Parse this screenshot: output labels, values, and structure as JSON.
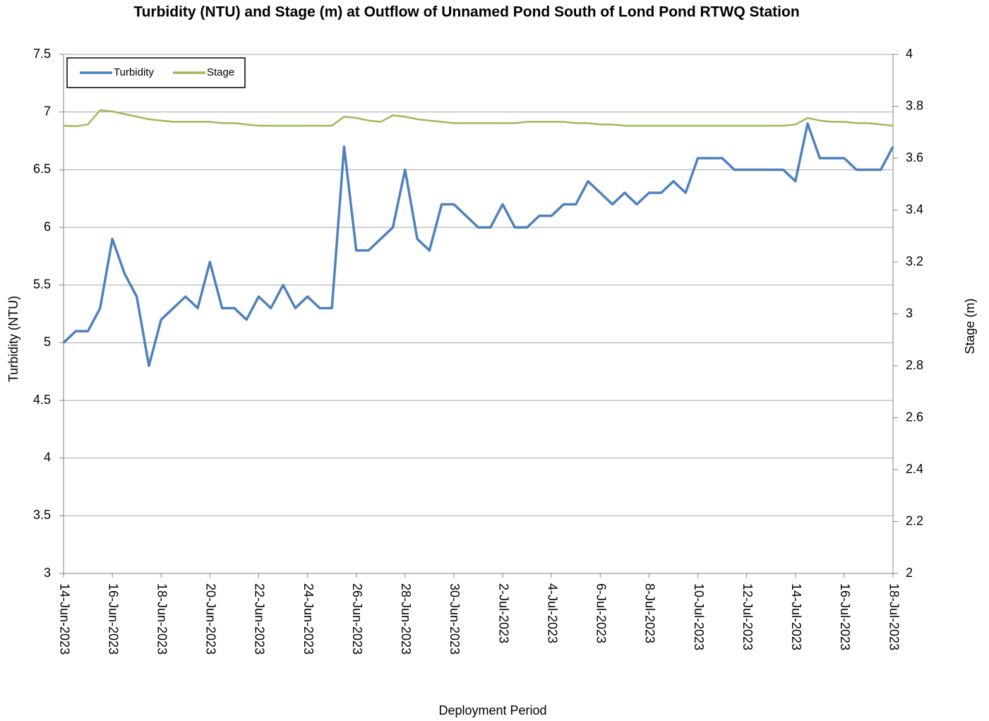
{
  "chart_data": {
    "type": "line",
    "title": "Turbidity (NTU) and Stage (m) at Outflow of Unnamed Pond South of Lond Pond RTWQ Station",
    "x_label": "Deployment Period",
    "y_label": "Turbidity (NTU)",
    "y2_label": "Stage (m)",
    "categories": [
      "14-Jun-2023",
      null,
      null,
      null,
      "16-Jun-2023",
      null,
      null,
      null,
      "18-Jun-2023",
      null,
      null,
      null,
      "20-Jun-2023",
      null,
      null,
      null,
      "22-Jun-2023",
      null,
      null,
      null,
      "24-Jun-2023",
      null,
      null,
      null,
      "26-Jun-2023",
      null,
      null,
      null,
      "28-Jun-2023",
      null,
      null,
      null,
      "30-Jun-2023",
      null,
      null,
      null,
      "2-Jul-2023",
      null,
      null,
      null,
      "4-Jul-2023",
      null,
      null,
      null,
      "6-Jul-2023",
      null,
      null,
      null,
      "8-Jul-2023",
      null,
      null,
      null,
      "10-Jul-2023",
      null,
      null,
      null,
      "12-Jul-2023",
      null,
      null,
      null,
      "14-Jul-2023",
      null,
      null,
      null,
      "16-Jul-2023",
      null,
      null,
      null,
      "18-Jul-2023"
    ],
    "series": [
      {
        "name": "Turbidity",
        "color": "#4f81bd",
        "axis": "y",
        "values": [
          5.0,
          5.1,
          5.1,
          5.3,
          5.9,
          5.6,
          5.4,
          4.8,
          5.2,
          5.3,
          5.4,
          5.3,
          5.7,
          5.3,
          5.3,
          5.2,
          5.4,
          5.3,
          5.5,
          5.3,
          5.4,
          5.3,
          5.3,
          6.7,
          5.8,
          5.8,
          5.9,
          6.0,
          6.5,
          5.9,
          5.8,
          6.2,
          6.2,
          6.1,
          6.0,
          6.0,
          6.2,
          6.0,
          6.0,
          6.1,
          6.1,
          6.2,
          6.2,
          6.4,
          6.3,
          6.2,
          6.3,
          6.2,
          6.3,
          6.3,
          6.4,
          6.3,
          6.6,
          6.6,
          6.6,
          6.5,
          6.5,
          6.5,
          6.5,
          6.5,
          6.4,
          6.9,
          6.6,
          6.6,
          6.6,
          6.5,
          6.5,
          6.5,
          6.7
        ]
      },
      {
        "name": "Stage",
        "color": "#9bbb59",
        "axis": "y2",
        "values": [
          3.725,
          3.723,
          3.73,
          3.785,
          3.78,
          3.77,
          3.76,
          3.75,
          3.745,
          3.74,
          3.74,
          3.74,
          3.74,
          3.735,
          3.735,
          3.73,
          3.725,
          3.725,
          3.725,
          3.725,
          3.725,
          3.725,
          3.725,
          3.76,
          3.755,
          3.745,
          3.74,
          3.765,
          3.76,
          3.75,
          3.745,
          3.74,
          3.735,
          3.735,
          3.735,
          3.735,
          3.735,
          3.735,
          3.74,
          3.74,
          3.74,
          3.74,
          3.735,
          3.735,
          3.73,
          3.73,
          3.725,
          3.725,
          3.725,
          3.725,
          3.725,
          3.725,
          3.725,
          3.725,
          3.725,
          3.725,
          3.725,
          3.725,
          3.725,
          3.725,
          3.73,
          3.755,
          3.745,
          3.74,
          3.74,
          3.735,
          3.735,
          3.73,
          3.725
        ]
      }
    ],
    "ylim": [
      3,
      7.5
    ],
    "yticks": [
      3,
      3.5,
      4,
      4.5,
      5,
      5.5,
      6,
      6.5,
      7,
      7.5
    ],
    "y2lim": [
      2,
      4
    ],
    "y2ticks": [
      2,
      2.2,
      2.4,
      2.6,
      2.8,
      3,
      3.2,
      3.4,
      3.6,
      3.8,
      4
    ],
    "grid": true,
    "legend": "upper left"
  }
}
